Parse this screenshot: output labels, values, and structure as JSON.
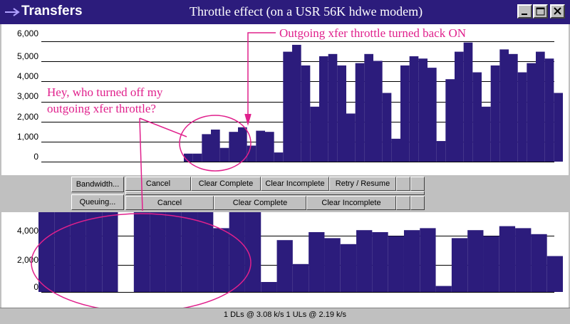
{
  "window": {
    "app_name": "Transfers",
    "title": "Throttle effect (on a USR 56K hdwe modem)",
    "controls": [
      "minimize",
      "maximize",
      "close"
    ]
  },
  "download_chart": {
    "y_ticks": [
      "6,000",
      "5,000",
      "4,000",
      "3,000",
      "2,000",
      "1,000",
      "0"
    ]
  },
  "upload_chart": {
    "y_ticks": [
      "4,000",
      "2,000",
      "0"
    ]
  },
  "toolbar": {
    "bandwidth_label": "Bandwidth...",
    "queuing_label": "Queuing...",
    "download_buttons": [
      "Cancel",
      "Clear Complete",
      "Clear Incomplete",
      "Retry / Resume"
    ],
    "upload_buttons": [
      "Cancel",
      "Clear Complete",
      "Clear Incomplete"
    ]
  },
  "annotations": {
    "throttle_on": "Outgoing xfer throttle turned back ON",
    "throttle_off_line1": "Hey, who turned off my",
    "throttle_off_line2": "outgoing xfer throttle?"
  },
  "status": {
    "text": "1 DLs @ 3.08 k/s  1 ULs @ 2.19 k/s"
  },
  "colors": {
    "title_bar": "#2c1c7c",
    "chart_fill": "#2c1c7c",
    "annotation": "#e0208c",
    "window_bg": "#c0c0c0"
  },
  "chart_data": [
    {
      "type": "area",
      "title": "",
      "series": [
        {
          "name": "",
          "values": [
            350,
            350,
            1200,
            1400,
            600,
            1300,
            1500,
            700,
            1350,
            1300,
            400,
            4800,
            5100,
            4200,
            2400,
            4600,
            4700,
            4200,
            2100,
            4300,
            4700,
            4400,
            3000,
            1000,
            4200,
            4600,
            4500,
            4100,
            900,
            3600,
            4800,
            5200,
            3900,
            2400,
            4200,
            4900,
            4700,
            3900,
            4300,
            4800,
            4500,
            3000
          ]
        }
      ],
      "ylim": [
        0,
        6000
      ],
      "yticks": [
        0,
        1000,
        2000,
        3000,
        4000,
        5000,
        6000
      ]
    },
    {
      "type": "area",
      "title": "",
      "series": [
        {
          "name": "",
          "values": [
            4250,
            4250,
            4250,
            4250,
            4250,
            0,
            4300,
            4200,
            4250,
            4100,
            4200,
            3200,
            4100,
            4300,
            500,
            2600,
            1400,
            3000,
            2700,
            2400,
            3100,
            3000,
            2800,
            3100,
            3200,
            300,
            2700,
            3100,
            2800,
            3300,
            3200,
            2900,
            1800
          ]
        }
      ],
      "ylim": [
        0,
        4000
      ],
      "yticks": [
        0,
        2000,
        4000
      ]
    }
  ]
}
